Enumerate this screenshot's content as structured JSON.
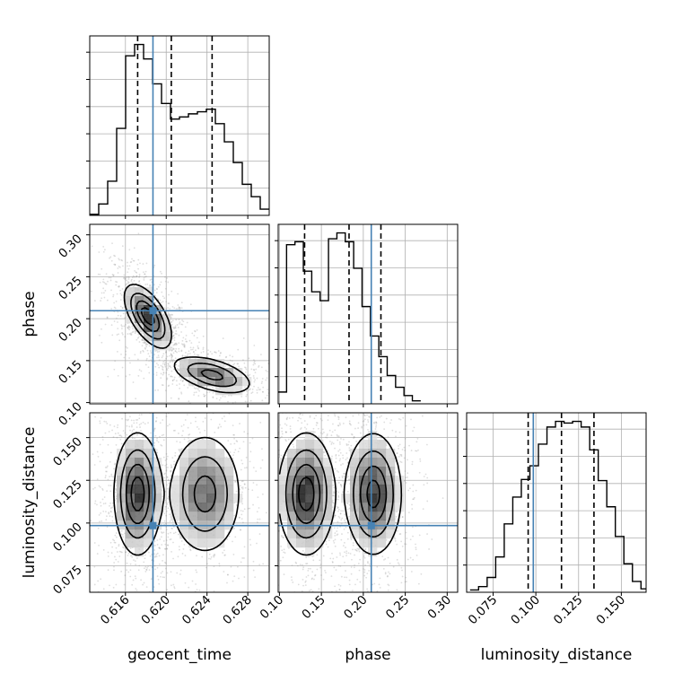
{
  "chart_data": {
    "type": "corner",
    "parameters": [
      "geocent_time",
      "phase",
      "luminosity_distance"
    ],
    "axis_labels": {
      "geocent_time": "geocent_time",
      "phase": "phase",
      "luminosity_distance": "luminosity_distance"
    },
    "ranges": {
      "geocent_time": [
        0.6125,
        0.6301
      ],
      "phase": [
        0.0985,
        0.3125
      ],
      "luminosity_distance": [
        0.0595,
        0.1645
      ]
    },
    "ticks": {
      "geocent_time": [
        0.616,
        0.62,
        0.624,
        0.628
      ],
      "phase": [
        0.1,
        0.15,
        0.2,
        0.25,
        0.3
      ],
      "luminosity_distance": [
        0.075,
        0.1,
        0.125,
        0.15
      ]
    },
    "tick_labels": {
      "geocent_time": [
        "0.616",
        "0.620",
        "0.624",
        "0.628"
      ],
      "phase": [
        "0.10",
        "0.15",
        "0.20",
        "0.25",
        "0.30"
      ],
      "luminosity_distance": [
        "0.075",
        "0.100",
        "0.125",
        "0.150"
      ]
    },
    "truths": {
      "geocent_time": 0.6187,
      "phase": 0.2095,
      "luminosity_distance": 0.0985
    },
    "quantiles": {
      "geocent_time": [
        0.6172,
        0.6205,
        0.6245
      ],
      "phase": [
        0.13,
        0.183,
        0.221
      ],
      "luminosity_distance": [
        0.0955,
        0.115,
        0.134
      ]
    },
    "histograms": {
      "geocent_time": [
        2,
        22,
        66,
        168,
        308,
        330,
        302,
        254,
        216,
        186,
        190,
        196,
        200,
        205,
        177,
        142,
        102,
        60,
        36,
        12
      ],
      "phase": [
        20,
        270,
        275,
        225,
        190,
        175,
        280,
        290,
        275,
        230,
        165,
        115,
        80,
        48,
        28,
        14,
        5
      ],
      "luminosity_distance": [
        4,
        10,
        26,
        62,
        120,
        167,
        198,
        222,
        260,
        290,
        300,
        297,
        300,
        290,
        250,
        196,
        150,
        98,
        50,
        19,
        6
      ]
    },
    "hist_bins": {
      "geocent_time": {
        "start": 0.6125,
        "width": 0.00088
      },
      "phase": {
        "start": 0.0985,
        "width": 0.01
      },
      "luminosity_distance": {
        "start": 0.0615,
        "width": 0.005
      }
    },
    "blobs": {
      "geocent_time__phase": [
        {
          "x": 0.6182,
          "y": 0.203,
          "sx": 0.0011,
          "sy": 0.018,
          "rho": -0.6,
          "w": 1.0
        },
        {
          "x": 0.6245,
          "y": 0.133,
          "sx": 0.0019,
          "sy": 0.011,
          "rho": -0.5,
          "w": 0.7
        }
      ],
      "geocent_time__luminosity_distance": [
        {
          "x": 0.6172,
          "y": 0.117,
          "sx": 0.0011,
          "sy": 0.017,
          "rho": 0.0,
          "w": 1.0
        },
        {
          "x": 0.6238,
          "y": 0.117,
          "sx": 0.0017,
          "sy": 0.017,
          "rho": 0.0,
          "w": 0.72
        }
      ],
      "phase__luminosity_distance": [
        {
          "x": 0.132,
          "y": 0.117,
          "sx": 0.016,
          "sy": 0.017,
          "rho": 0.0,
          "w": 1.0
        },
        {
          "x": 0.212,
          "y": 0.117,
          "sx": 0.016,
          "sy": 0.017,
          "rho": 0.0,
          "w": 0.95
        }
      ]
    },
    "colors": {
      "truth": "#4682b4",
      "hist": "#000000",
      "grid": "#b0b0b0"
    },
    "grid": true
  }
}
